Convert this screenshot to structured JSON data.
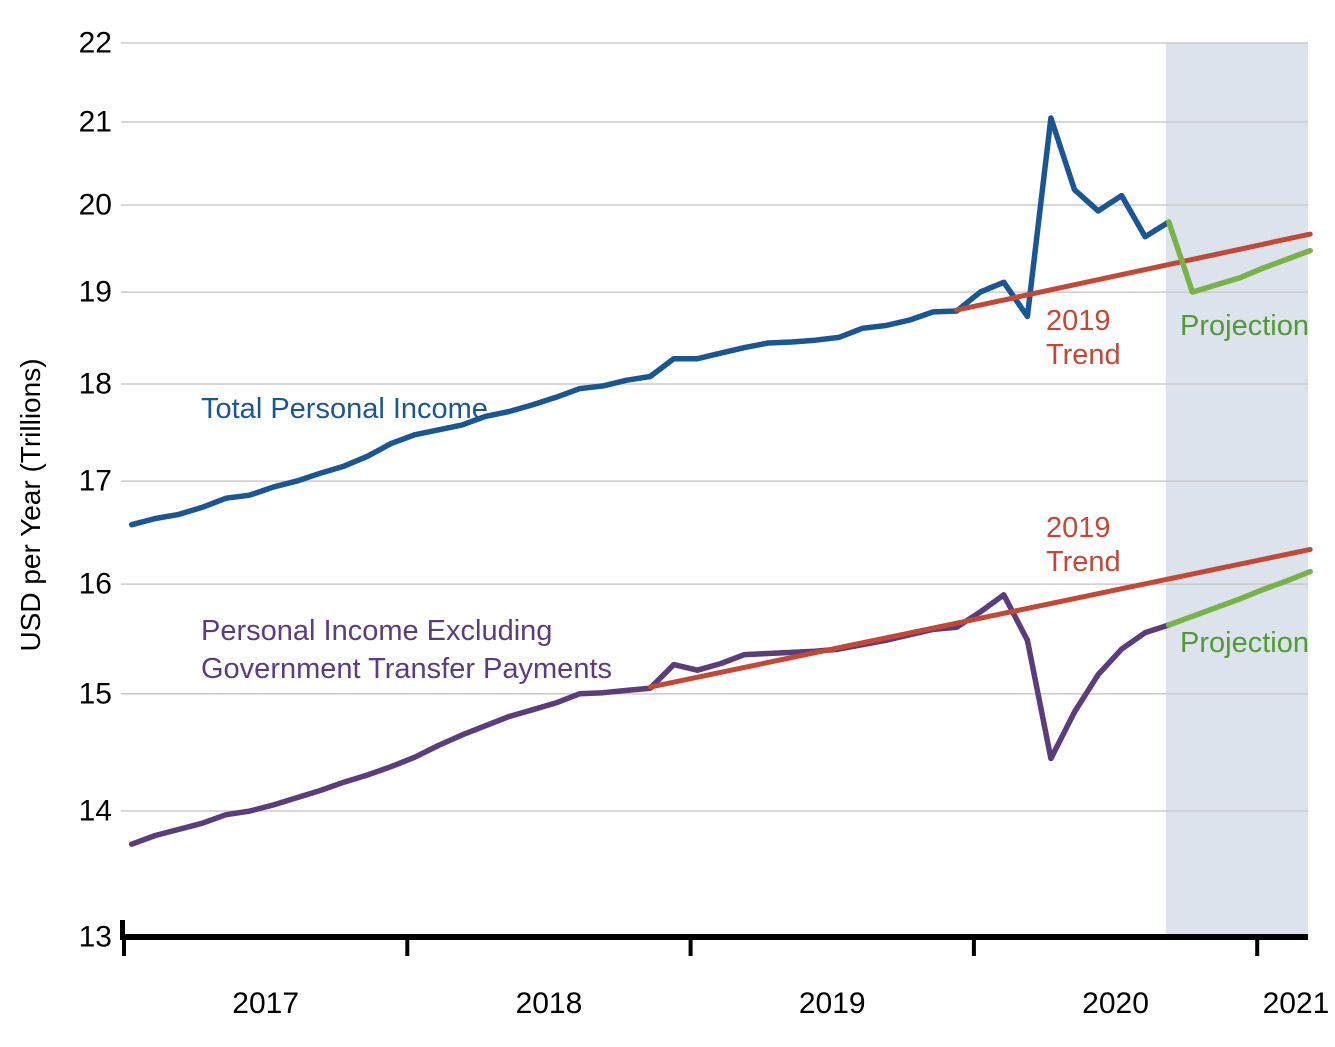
{
  "colors": {
    "total_line": "#1A5694",
    "ex_transfers_line": "#5C3D7C",
    "trend_line": "#C44836",
    "projection_line": "#7AB24A",
    "projection_text": "#529A31",
    "projection_band": "#DCE3EC",
    "gridline": "#CBCBCB",
    "axis": "#000000"
  },
  "annotations": {
    "total_label": "Total Personal Income",
    "ex_transfers_label_line1": "Personal Income Excluding",
    "ex_transfers_label_line2": "Government Transfer Payments",
    "trend_upper_line1": "2019",
    "trend_upper_line2": "Trend",
    "trend_lower_line1": "2019",
    "trend_lower_line2": "Trend",
    "projection_upper": "Projection",
    "projection_lower": "Projection"
  },
  "chart_data": {
    "type": "line",
    "y_scale": "log",
    "ylabel": "USD per Year (Trillions)",
    "ylim": [
      13,
      22
    ],
    "y_ticks": [
      22,
      21,
      20,
      19,
      18,
      17,
      16,
      15,
      14,
      13
    ],
    "x_tick_years": [
      "2017",
      "2018",
      "2019",
      "2020",
      "2021"
    ],
    "x_unit": "month",
    "grid": "horizontal-only",
    "projection_band": {
      "start_month": "2020-09",
      "end_month": "2021-03"
    },
    "series": [
      {
        "name": "Total Personal Income",
        "color_key": "total_line",
        "style": "solid",
        "start_month": "2017-01",
        "values": [
          16.57,
          16.63,
          16.67,
          16.74,
          16.83,
          16.86,
          16.94,
          17.0,
          17.08,
          17.15,
          17.25,
          17.38,
          17.47,
          17.52,
          17.57,
          17.66,
          17.71,
          17.78,
          17.86,
          17.95,
          17.98,
          18.04,
          18.08,
          18.27,
          18.27,
          18.33,
          18.39,
          18.44,
          18.45,
          18.47,
          18.5,
          18.6,
          18.63,
          18.69,
          18.78,
          18.79,
          19.0,
          19.11,
          18.73,
          21.05,
          20.18,
          19.93,
          20.11,
          19.63,
          19.8
        ]
      },
      {
        "name": "Total Personal Income Projection",
        "color_key": "projection_line",
        "style": "solid",
        "start_month": "2020-09",
        "values": [
          19.8,
          19.0,
          19.08,
          19.16,
          19.27,
          19.37,
          19.47
        ]
      },
      {
        "name": "Total Personal Income 2019 Trend",
        "color_key": "trend_line",
        "style": "solid",
        "segment": {
          "start_month": "2019-12",
          "start_value": 18.8,
          "end_month": "2021-03",
          "end_value": 19.66
        }
      },
      {
        "name": "Personal Income Excluding Government Transfer Payments",
        "color_key": "ex_transfers_line",
        "style": "solid",
        "start_month": "2017-01",
        "values": [
          13.73,
          13.8,
          13.85,
          13.9,
          13.97,
          14.0,
          14.05,
          14.11,
          14.17,
          14.24,
          14.3,
          14.37,
          14.45,
          14.55,
          14.64,
          14.72,
          14.8,
          14.86,
          14.92,
          15.0,
          15.01,
          15.03,
          15.05,
          15.26,
          15.21,
          15.27,
          15.35,
          15.36,
          15.37,
          15.38,
          15.4,
          15.44,
          15.48,
          15.53,
          15.58,
          15.6,
          15.74,
          15.9,
          15.48,
          14.44,
          14.84,
          15.17,
          15.4,
          15.55,
          15.62
        ]
      },
      {
        "name": "Personal Income Excluding Government Transfer Payments Projection",
        "color_key": "projection_line",
        "style": "solid",
        "start_month": "2020-09",
        "values": [
          15.62,
          15.7,
          15.78,
          15.86,
          15.95,
          16.03,
          16.12
        ]
      },
      {
        "name": "Personal Income Excluding Government Transfer Payments 2019 Trend",
        "color_key": "trend_line",
        "style": "solid",
        "segment": {
          "start_month": "2018-11",
          "start_value": 15.06,
          "end_month": "2021-03",
          "end_value": 16.33
        }
      }
    ]
  }
}
